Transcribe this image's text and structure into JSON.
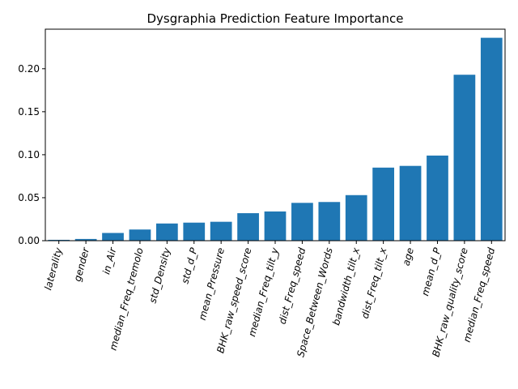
{
  "chart_data": {
    "type": "bar",
    "title": "Dysgraphia Prediction Feature Importance",
    "xlabel": "",
    "ylabel": "",
    "categories": [
      "laterality",
      "gender",
      "in_Air",
      "median_Freq_tremolo",
      "std_Density",
      "std_d_P",
      "mean_Pressure",
      "BHK_raw_speed_score",
      "median_Freq_tilt_y",
      "dist_Freq_speed",
      "Space_Between_Words",
      "bandwidth_tilt_x",
      "dist_Freq_tilt_x",
      "age",
      "mean_d_P",
      "BHK_raw_quality_score",
      "median_Freq_speed"
    ],
    "values": [
      0.001,
      0.002,
      0.009,
      0.013,
      0.02,
      0.021,
      0.022,
      0.032,
      0.034,
      0.044,
      0.045,
      0.053,
      0.085,
      0.087,
      0.099,
      0.193,
      0.236
    ],
    "ylim": [
      0,
      0.246
    ],
    "yticks": [
      0.0,
      0.05,
      0.1,
      0.15,
      0.2
    ],
    "ytick_labels": [
      "0.00",
      "0.05",
      "0.10",
      "0.15",
      "0.20"
    ],
    "x_tick_rotation": 75,
    "bar_color": "#1f77b4",
    "grid": false
  }
}
